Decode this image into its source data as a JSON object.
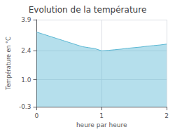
{
  "chart_data": {
    "type": "area",
    "title": "Evolution de la température",
    "xlabel": "heure par heure",
    "ylabel": "Température en °C",
    "x": [
      0,
      0.1,
      0.2,
      0.3,
      0.4,
      0.5,
      0.6,
      0.7,
      0.8,
      0.9,
      1.0,
      1.1,
      1.2,
      1.3,
      1.4,
      1.5,
      1.6,
      1.7,
      1.8,
      1.9,
      2.0
    ],
    "values": [
      3.3,
      3.2,
      3.1,
      3.0,
      2.9,
      2.8,
      2.7,
      2.6,
      2.55,
      2.5,
      2.4,
      2.42,
      2.45,
      2.48,
      2.52,
      2.55,
      2.58,
      2.62,
      2.65,
      2.68,
      2.72
    ],
    "color": "#5bb8d4",
    "xlim": [
      0,
      2
    ],
    "xticks": [
      0,
      1,
      2
    ],
    "ylim": [
      -0.3,
      3.9
    ],
    "yticks": [
      -0.3,
      {
        "value": 1.0,
        "label": "1.0"
      },
      2.4,
      3.9
    ],
    "grid": true
  }
}
